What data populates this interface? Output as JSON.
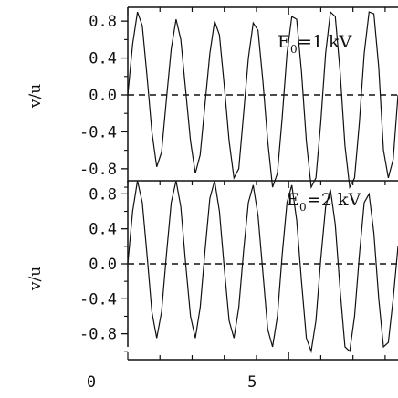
{
  "chart_data": [
    {
      "type": "line",
      "panel": "top",
      "title": "",
      "ylabel": "v/u",
      "xlabel": "",
      "annotation": {
        "prefix": "E",
        "sub": "0",
        "suffix": "=1 kV"
      },
      "ylim": [
        -1.0,
        1.0
      ],
      "xlim": [
        0,
        8.4
      ],
      "yticks": [
        "0.8",
        "0.4",
        "0.0",
        "-0.4",
        "-0.8"
      ],
      "yticks_values": [
        0.8,
        0.4,
        0.0,
        -0.4,
        -0.8
      ],
      "series": [
        {
          "style": "solid",
          "x": [
            0.0,
            0.15,
            0.3,
            0.45,
            0.6,
            0.75,
            0.9,
            1.05,
            1.2,
            1.35,
            1.5,
            1.65,
            1.8,
            1.95,
            2.1,
            2.25,
            2.4,
            2.55,
            2.7,
            2.85,
            3.0,
            3.15,
            3.3,
            3.45,
            3.6,
            3.75,
            3.9,
            4.05,
            4.2,
            4.35,
            4.5,
            4.65,
            4.8,
            4.95,
            5.1,
            5.25,
            5.4,
            5.55,
            5.7,
            5.85,
            6.0,
            6.15,
            6.3,
            6.45,
            6.6,
            6.75,
            6.9,
            7.05,
            7.2,
            7.35,
            7.5,
            7.65,
            7.8,
            7.95,
            8.1,
            8.25,
            8.4
          ],
          "y": [
            0.0,
            0.55,
            0.9,
            0.75,
            0.2,
            -0.4,
            -0.78,
            -0.62,
            -0.05,
            0.5,
            0.82,
            0.6,
            0.05,
            -0.5,
            -0.85,
            -0.65,
            -0.1,
            0.45,
            0.8,
            0.65,
            0.1,
            -0.5,
            -0.9,
            -0.8,
            -0.2,
            0.4,
            0.78,
            0.7,
            0.15,
            -0.5,
            -1.0,
            -0.85,
            -0.25,
            0.45,
            0.85,
            0.82,
            0.25,
            -0.5,
            -1.0,
            -0.9,
            -0.3,
            0.45,
            0.9,
            0.85,
            0.25,
            -0.55,
            -1.0,
            -0.9,
            -0.3,
            0.45,
            0.9,
            0.88,
            0.3,
            -0.6,
            -0.9,
            -0.7,
            0.0
          ]
        },
        {
          "style": "dashed",
          "x": [
            0,
            8.4
          ],
          "y": [
            0.0,
            0.0
          ]
        }
      ]
    },
    {
      "type": "line",
      "panel": "bottom",
      "title": "",
      "ylabel": "v/u",
      "xlabel": "",
      "annotation": {
        "prefix": "E",
        "sub": "0",
        "suffix": "=2 kV"
      },
      "ylim": [
        -1.0,
        1.0
      ],
      "xlim": [
        0,
        8.4
      ],
      "xticks": [
        "0",
        "5"
      ],
      "xticks_values": [
        0,
        5
      ],
      "yticks": [
        "0.8",
        "0.4",
        "0.0",
        "-0.4",
        "-0.8"
      ],
      "yticks_values": [
        0.8,
        0.4,
        0.0,
        -0.4,
        -0.8
      ],
      "series": [
        {
          "style": "solid",
          "x": [
            0.0,
            0.15,
            0.3,
            0.45,
            0.6,
            0.75,
            0.9,
            1.05,
            1.2,
            1.35,
            1.5,
            1.65,
            1.8,
            1.95,
            2.1,
            2.25,
            2.4,
            2.55,
            2.7,
            2.85,
            3.0,
            3.15,
            3.3,
            3.45,
            3.6,
            3.75,
            3.9,
            4.05,
            4.2,
            4.35,
            4.5,
            4.65,
            4.8,
            4.95,
            5.1,
            5.25,
            5.4,
            5.55,
            5.7,
            5.85,
            6.0,
            6.15,
            6.3,
            6.45,
            6.6,
            6.75,
            6.9,
            7.05,
            7.2,
            7.35,
            7.5,
            7.65,
            7.8,
            7.95,
            8.1,
            8.25,
            8.4
          ],
          "y": [
            0.0,
            0.6,
            0.95,
            0.7,
            0.1,
            -0.55,
            -0.85,
            -0.55,
            0.1,
            0.7,
            0.95,
            0.65,
            0.0,
            -0.6,
            -0.85,
            -0.5,
            0.15,
            0.75,
            0.95,
            0.6,
            -0.05,
            -0.65,
            -0.85,
            -0.5,
            0.15,
            0.7,
            0.9,
            0.55,
            -0.1,
            -0.75,
            -0.95,
            -0.6,
            0.1,
            0.7,
            0.9,
            0.5,
            -0.2,
            -0.85,
            -1.0,
            -0.65,
            0.05,
            0.65,
            0.85,
            0.45,
            -0.3,
            -0.95,
            -1.0,
            -0.6,
            0.1,
            0.7,
            0.8,
            0.35,
            -0.4,
            -0.95,
            -0.9,
            -0.4,
            0.2
          ]
        },
        {
          "style": "dashed",
          "x": [
            0,
            8.4
          ],
          "y": [
            0.0,
            0.0
          ]
        }
      ]
    }
  ]
}
